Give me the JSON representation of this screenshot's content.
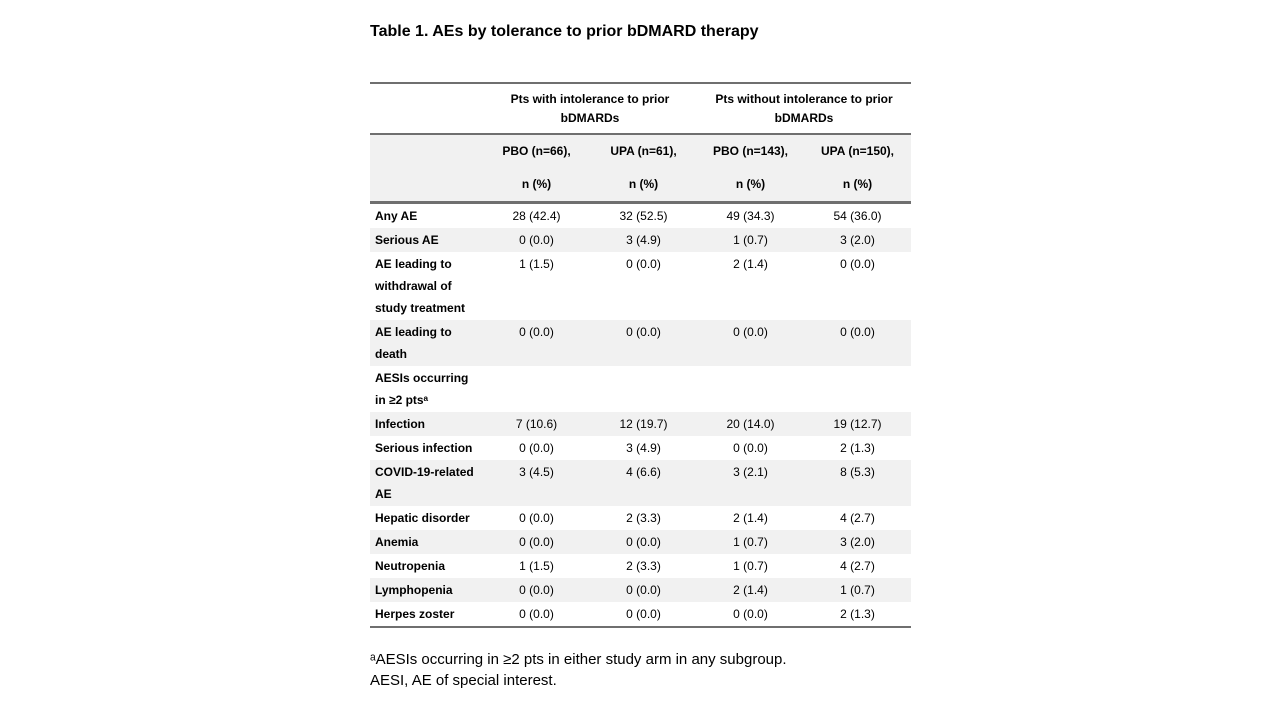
{
  "chart_data": {
    "type": "table",
    "title": "Table 1. AEs by tolerance to prior bDMARD therapy",
    "group_headers": [
      [
        "Pts with intolerance to prior",
        "bDMARDs"
      ],
      [
        "Pts without intolerance to prior",
        "bDMARDs"
      ]
    ],
    "column_headers": [
      [
        "PBO (n=66),",
        "n (%)"
      ],
      [
        "UPA (n=61),",
        "n (%)"
      ],
      [
        "PBO (n=143),",
        "n (%)"
      ],
      [
        "UPA (n=150),",
        "n (%)"
      ]
    ],
    "rows": [
      {
        "label": "Any AE",
        "values": [
          "28 (42.4)",
          "32 (52.5)",
          "49 (34.3)",
          "54 (36.0)"
        ]
      },
      {
        "label": "Serious AE",
        "values": [
          "0 (0.0)",
          "3 (4.9)",
          "1 (0.7)",
          "3 (2.0)"
        ]
      },
      {
        "label": [
          "AE leading to",
          "withdrawal of",
          "study treatment"
        ],
        "values": [
          "1 (1.5)",
          "0 (0.0)",
          "2 (1.4)",
          "0 (0.0)"
        ]
      },
      {
        "label": [
          "AE leading to",
          "death"
        ],
        "values": [
          "0 (0.0)",
          "0 (0.0)",
          "0 (0.0)",
          "0 (0.0)"
        ]
      },
      {
        "label": [
          "AESIs occurring",
          "in ≥2 ptsᵃ"
        ],
        "values": [
          "",
          "",
          "",
          ""
        ]
      },
      {
        "label": "Infection",
        "values": [
          "7 (10.6)",
          "12 (19.7)",
          "20 (14.0)",
          "19 (12.7)"
        ]
      },
      {
        "label": "Serious infection",
        "values": [
          "0 (0.0)",
          "3 (4.9)",
          "0 (0.0)",
          "2 (1.3)"
        ]
      },
      {
        "label": [
          "COVID-19-related",
          "AE"
        ],
        "values": [
          "3 (4.5)",
          "4 (6.6)",
          "3 (2.1)",
          "8 (5.3)"
        ]
      },
      {
        "label": "Hepatic disorder",
        "values": [
          "0 (0.0)",
          "2 (3.3)",
          "2 (1.4)",
          "4 (2.7)"
        ]
      },
      {
        "label": "Anemia",
        "values": [
          "0 (0.0)",
          "0 (0.0)",
          "1 (0.7)",
          "3 (2.0)"
        ]
      },
      {
        "label": "Neutropenia",
        "values": [
          "1 (1.5)",
          "2 (3.3)",
          "1 (0.7)",
          "4 (2.7)"
        ]
      },
      {
        "label": "Lymphopenia",
        "values": [
          "0 (0.0)",
          "0 (0.0)",
          "2 (1.4)",
          "1 (0.7)"
        ]
      },
      {
        "label": "Herpes zoster",
        "values": [
          "0 (0.0)",
          "0 (0.0)",
          "0 (0.0)",
          "2 (1.3)"
        ]
      }
    ],
    "footnotes": [
      "ᵃAESIs occurring in ≥2 pts in either study arm in any subgroup.",
      "AESI, AE of special interest."
    ],
    "colors": {
      "background": "#ffffff",
      "stripe": "#f1f1f1",
      "border": "#6f6f6f",
      "text": "#000000"
    }
  }
}
